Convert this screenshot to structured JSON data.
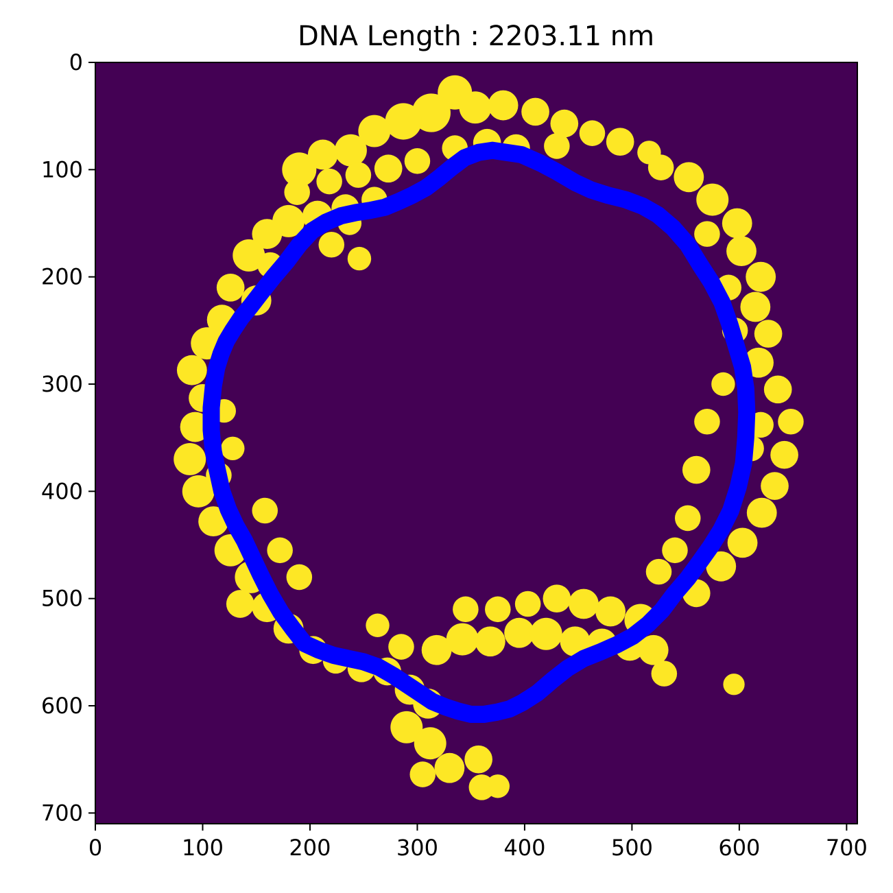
{
  "chart_data": {
    "type": "heatmap",
    "title": "DNA Length : 2203.11 nm",
    "xlabel": "",
    "ylabel": "",
    "xlim": [
      0,
      710
    ],
    "ylim": [
      710,
      0
    ],
    "y_inverted": true,
    "grid": false,
    "legend": "none",
    "x_ticks": [
      0,
      100,
      200,
      300,
      400,
      500,
      600,
      700
    ],
    "x_tick_labels": [
      "0",
      "100",
      "200",
      "300",
      "400",
      "500",
      "600",
      "700"
    ],
    "y_ticks": [
      0,
      100,
      200,
      300,
      400,
      500,
      600,
      700
    ],
    "y_tick_labels": [
      "0",
      "100",
      "200",
      "300",
      "400",
      "500",
      "600",
      "700"
    ],
    "image": {
      "description": "binary mask of the DNA molecule",
      "background_color": "#440154",
      "foreground_color": "#fde725",
      "blobs": [
        [
          335,
          28,
          16
        ],
        [
          313,
          47,
          18
        ],
        [
          354,
          42,
          15
        ],
        [
          380,
          40,
          14
        ],
        [
          410,
          46,
          13
        ],
        [
          437,
          57,
          13
        ],
        [
          463,
          66,
          12
        ],
        [
          489,
          74,
          13
        ],
        [
          516,
          84,
          11
        ],
        [
          287,
          55,
          17
        ],
        [
          260,
          64,
          15
        ],
        [
          238,
          82,
          15
        ],
        [
          212,
          86,
          14
        ],
        [
          190,
          100,
          16
        ],
        [
          188,
          121,
          12
        ],
        [
          218,
          111,
          12
        ],
        [
          245,
          105,
          12
        ],
        [
          273,
          99,
          13
        ],
        [
          260,
          128,
          12
        ],
        [
          233,
          136,
          13
        ],
        [
          207,
          143,
          14
        ],
        [
          180,
          148,
          15
        ],
        [
          160,
          160,
          14
        ],
        [
          143,
          180,
          15
        ],
        [
          163,
          189,
          12
        ],
        [
          150,
          222,
          14
        ],
        [
          126,
          210,
          13
        ],
        [
          118,
          240,
          14
        ],
        [
          104,
          262,
          15
        ],
        [
          90,
          287,
          14
        ],
        [
          100,
          313,
          13
        ],
        [
          120,
          325,
          11
        ],
        [
          93,
          340,
          14
        ],
        [
          88,
          370,
          15
        ],
        [
          96,
          400,
          15
        ],
        [
          110,
          428,
          14
        ],
        [
          126,
          455,
          15
        ],
        [
          145,
          480,
          15
        ],
        [
          135,
          505,
          13
        ],
        [
          160,
          508,
          14
        ],
        [
          180,
          528,
          14
        ],
        [
          203,
          548,
          13
        ],
        [
          224,
          558,
          12
        ],
        [
          248,
          565,
          13
        ],
        [
          272,
          568,
          13
        ],
        [
          293,
          585,
          14
        ],
        [
          310,
          598,
          14
        ],
        [
          290,
          620,
          15
        ],
        [
          312,
          635,
          15
        ],
        [
          330,
          658,
          14
        ],
        [
          305,
          664,
          12
        ],
        [
          357,
          650,
          13
        ],
        [
          360,
          676,
          12
        ],
        [
          375,
          675,
          11
        ],
        [
          318,
          548,
          14
        ],
        [
          342,
          538,
          15
        ],
        [
          368,
          540,
          14
        ],
        [
          395,
          532,
          14
        ],
        [
          420,
          533,
          15
        ],
        [
          447,
          540,
          14
        ],
        [
          472,
          542,
          14
        ],
        [
          498,
          544,
          14
        ],
        [
          520,
          548,
          14
        ],
        [
          530,
          570,
          12
        ],
        [
          508,
          520,
          15
        ],
        [
          480,
          512,
          14
        ],
        [
          455,
          505,
          14
        ],
        [
          430,
          500,
          13
        ],
        [
          403,
          505,
          12
        ],
        [
          375,
          510,
          12
        ],
        [
          345,
          510,
          12
        ],
        [
          560,
          495,
          13
        ],
        [
          583,
          470,
          14
        ],
        [
          603,
          448,
          14
        ],
        [
          621,
          420,
          14
        ],
        [
          633,
          395,
          13
        ],
        [
          642,
          366,
          13
        ],
        [
          648,
          335,
          12
        ],
        [
          620,
          338,
          12
        ],
        [
          611,
          360,
          12
        ],
        [
          636,
          305,
          13
        ],
        [
          618,
          280,
          14
        ],
        [
          627,
          253,
          13
        ],
        [
          615,
          228,
          14
        ],
        [
          620,
          200,
          14
        ],
        [
          602,
          176,
          14
        ],
        [
          598,
          150,
          14
        ],
        [
          575,
          128,
          15
        ],
        [
          553,
          107,
          14
        ],
        [
          527,
          98,
          12
        ],
        [
          570,
          160,
          12
        ],
        [
          590,
          210,
          12
        ],
        [
          596,
          250,
          12
        ],
        [
          585,
          300,
          11
        ],
        [
          570,
          335,
          12
        ],
        [
          560,
          380,
          13
        ],
        [
          552,
          425,
          12
        ],
        [
          540,
          455,
          12
        ],
        [
          525,
          475,
          12
        ],
        [
          430,
          78,
          12
        ],
        [
          392,
          80,
          13
        ],
        [
          365,
          75,
          13
        ],
        [
          335,
          80,
          12
        ],
        [
          300,
          92,
          12
        ],
        [
          220,
          170,
          12
        ],
        [
          237,
          150,
          11
        ],
        [
          246,
          183,
          11
        ],
        [
          115,
          385,
          12
        ],
        [
          128,
          360,
          11
        ],
        [
          158,
          418,
          12
        ],
        [
          172,
          455,
          12
        ],
        [
          190,
          480,
          12
        ],
        [
          263,
          525,
          11
        ],
        [
          285,
          545,
          12
        ],
        [
          595,
          580,
          10
        ]
      ]
    },
    "series": [
      {
        "color": "#0000ff",
        "line_width_data": 16,
        "closed": true,
        "x": [
          370,
          397,
          415,
          430,
          447,
          462,
          478,
          494,
          510,
          524,
          538,
          552,
          563,
          574,
          584,
          591,
          597,
          603,
          606,
          607,
          606,
          604,
          599,
          592,
          583,
          573,
          563,
          552,
          540,
          528,
          515,
          501,
          486,
          470,
          455,
          440,
          426,
          412,
          398,
          386,
          374,
          362,
          350,
          338,
          326,
          314,
          302,
          290,
          278,
          264,
          250,
          236,
          222,
          208,
          195,
          184,
          173,
          163,
          154,
          146,
          139,
          131,
          124,
          118,
          114,
          110,
          108,
          108,
          110,
          113,
          117,
          122,
          128,
          136,
          145,
          155,
          166,
          178,
          190,
          202,
          215,
          229,
          243,
          256,
          270,
          282,
          295,
          308,
          320,
          332,
          344,
          357,
          370
        ],
        "y": [
          82,
          86,
          94,
          102,
          112,
          119,
          124,
          128,
          134,
          142,
          154,
          170,
          188,
          205,
          224,
          244,
          264,
          284,
          304,
          326,
          350,
          374,
          396,
          418,
          436,
          452,
          466,
          481,
          495,
          511,
          524,
          535,
          543,
          550,
          556,
          565,
          576,
          588,
          597,
          603,
          606,
          608,
          608,
          605,
          601,
          596,
          588,
          580,
          572,
          564,
          559,
          556,
          553,
          548,
          542,
          528,
          513,
          496,
          478,
          461,
          446,
          432,
          417,
          400,
          382,
          363,
          343,
          322,
          302,
          285,
          272,
          260,
          250,
          238,
          227,
          214,
          200,
          186,
          170,
          157,
          149,
          143,
          140,
          138,
          135,
          130,
          124,
          117,
          108,
          98,
          89,
          84,
          82
        ]
      }
    ]
  }
}
